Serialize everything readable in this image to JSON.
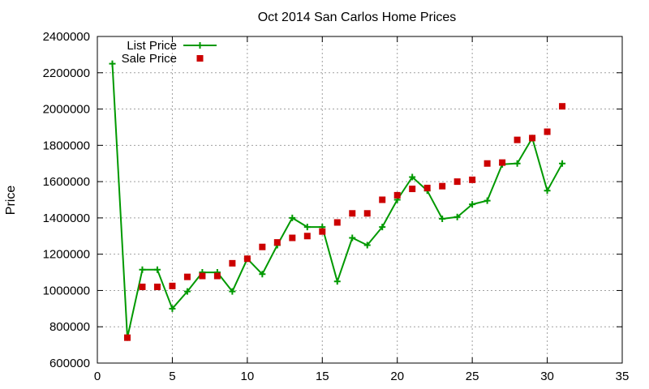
{
  "chart_data": {
    "type": "line",
    "title": "Oct 2014 San Carlos Home Prices",
    "xlabel": "",
    "ylabel": "Price",
    "xlim": [
      0,
      35
    ],
    "ylim": [
      600000,
      2400000
    ],
    "xticks": [
      0,
      5,
      10,
      15,
      20,
      25,
      30,
      35
    ],
    "yticks": [
      600000,
      800000,
      1000000,
      1200000,
      1400000,
      1600000,
      1800000,
      2000000,
      2200000,
      2400000
    ],
    "grid": true,
    "legend_position": "top-left",
    "series": [
      {
        "name": "List Price",
        "style": "line-with-plus-markers",
        "color": "#009900",
        "x": [
          1,
          2,
          3,
          4,
          5,
          6,
          7,
          8,
          9,
          10,
          11,
          12,
          13,
          14,
          15,
          16,
          17,
          18,
          19,
          20,
          21,
          22,
          23,
          24,
          25,
          26,
          27,
          28,
          29,
          30,
          31
        ],
        "y": [
          2250000,
          740000,
          1115000,
          1115000,
          900000,
          995000,
          1100000,
          1100000,
          995000,
          1175000,
          1090000,
          1250000,
          1400000,
          1350000,
          1350000,
          1050000,
          1290000,
          1250000,
          1350000,
          1500000,
          1625000,
          1550000,
          1395000,
          1405000,
          1475000,
          1495000,
          1695000,
          1700000,
          1840000,
          1550000,
          1700000
        ]
      },
      {
        "name": "Sale Price",
        "style": "square-markers",
        "color": "#cc0000",
        "x": [
          2,
          3,
          4,
          5,
          6,
          7,
          8,
          9,
          10,
          11,
          12,
          13,
          14,
          15,
          16,
          17,
          18,
          19,
          20,
          21,
          22,
          23,
          24,
          25,
          26,
          27,
          28,
          29,
          30,
          31
        ],
        "y": [
          740000,
          1020000,
          1020000,
          1025000,
          1075000,
          1080000,
          1080000,
          1150000,
          1175000,
          1240000,
          1265000,
          1290000,
          1300000,
          1325000,
          1375000,
          1425000,
          1425000,
          1500000,
          1525000,
          1560000,
          1565000,
          1575000,
          1600000,
          1610000,
          1700000,
          1705000,
          1830000,
          1840000,
          1875000,
          2015000
        ]
      }
    ]
  }
}
